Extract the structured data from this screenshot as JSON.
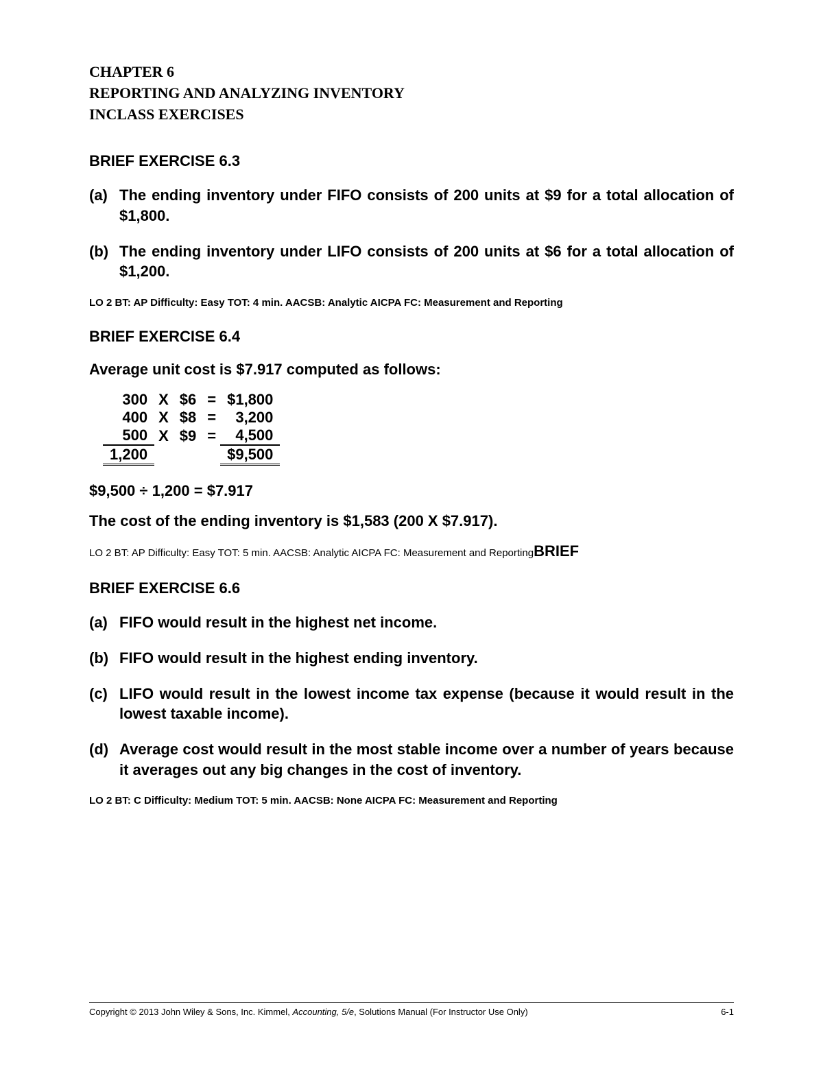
{
  "chapter": {
    "line1": "CHAPTER 6",
    "line2": "REPORTING AND ANALYZING INVENTORY",
    "line3": "INCLASS EXERCISES"
  },
  "ex63": {
    "title": "BRIEF EXERCISE 6.3",
    "a_label": "(a)",
    "a_text": "The ending inventory under FIFO consists of 200 units at $9 for a total allocation of $1,800.",
    "b_label": "(b)",
    "b_text": "The ending inventory under LIFO consists of 200 units at $6 for a total allocation of $1,200.",
    "meta": "LO 2  BT: AP  Difficulty: Easy  TOT: 4 min.  AACSB: Analytic  AICPA FC: Measurement and Reporting"
  },
  "ex64": {
    "title": "BRIEF EXERCISE 6.4",
    "intro": "Average unit cost is $7.917 computed as follows:",
    "rows": [
      {
        "qty": "300",
        "op1": "X",
        "price": "$6",
        "op2": "=",
        "amt": "$1,800"
      },
      {
        "qty": "400",
        "op1": "X",
        "price": "$8",
        "op2": "=",
        "amt": "3,200"
      },
      {
        "qty": "500",
        "op1": "X",
        "price": "$9",
        "op2": "=",
        "amt": "4,500"
      }
    ],
    "total_qty": "1,200",
    "total_amt": "$9,500",
    "div_line": "$9,500 ÷ 1,200 = $7.917",
    "end_line": "The cost of the ending inventory is $1,583 (200 X $7.917).",
    "meta_pre": "LO 2  BT: AP  Difficulty: Easy  TOT: 5 min.  AACSB: Analytic  AICPA FC: Measurement and Reporting",
    "meta_brief": "BRIEF"
  },
  "ex66": {
    "title": "BRIEF EXERCISE 6.6",
    "a_label": "(a)",
    "a_text": "FIFO would result in the highest net income.",
    "b_label": "(b)",
    "b_text": "FIFO would result in the highest ending inventory.",
    "c_label": "(c)",
    "c_text": "LIFO would result in the lowest income tax expense (because it would result in the lowest taxable income).",
    "d_label": "(d)",
    "d_text": "Average cost would result in the most stable income over a number of years because it averages out any big changes in the cost of inventory.",
    "meta": "LO 2  BT: C  Difficulty: Medium  TOT: 5 min.  AACSB: None  AICPA FC: Measurement and Reporting"
  },
  "footer": {
    "copyright": "Copyright © 2013 John Wiley & Sons, Inc.    Kimmel, ",
    "ital": "Accounting, 5/e",
    "rest": ", Solutions Manual     (For Instructor Use Only)",
    "page": "6-1"
  }
}
